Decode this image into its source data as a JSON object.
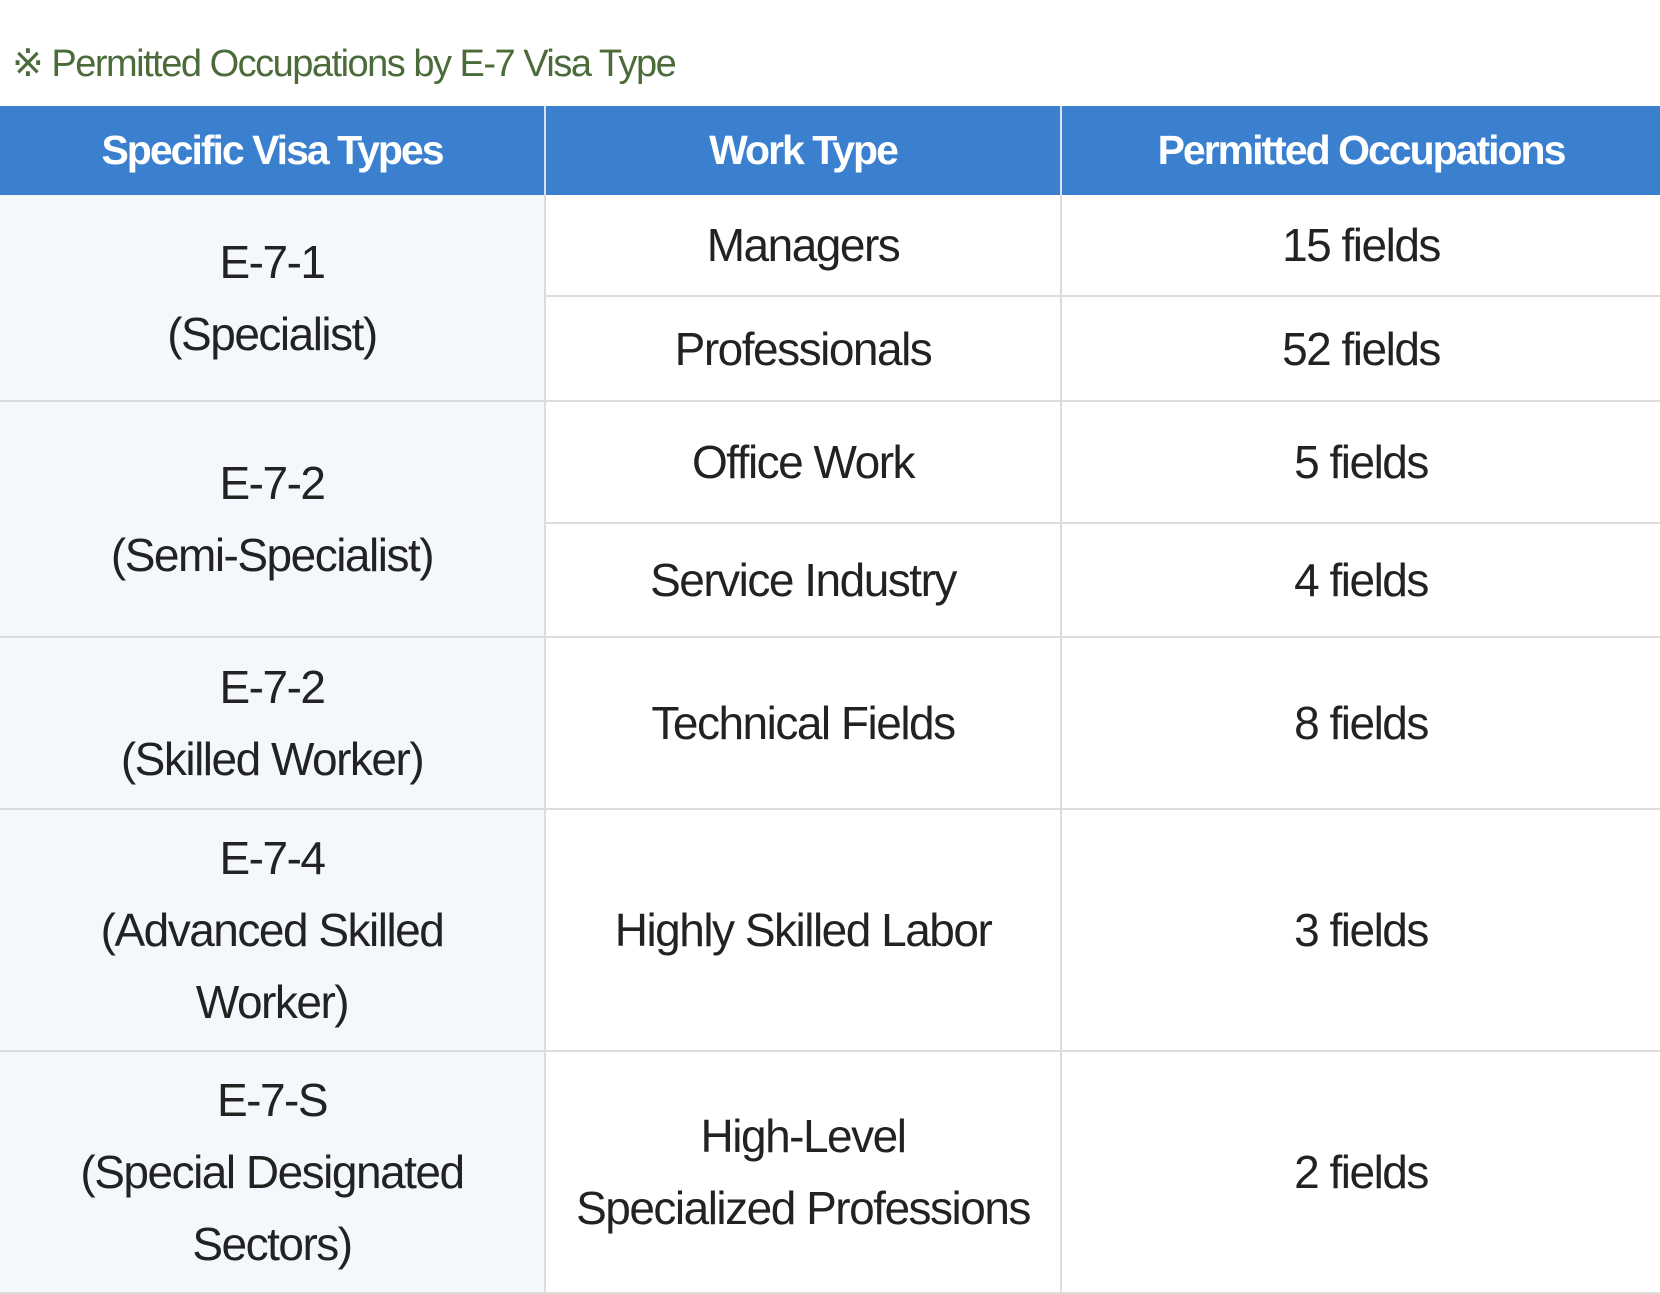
{
  "caption": "※ Permitted Occupations by E-7 Visa Type",
  "table": {
    "headers": [
      "Specific Visa Types",
      "Work Type",
      "Permitted Occupations"
    ],
    "groups": [
      {
        "code": "E-7-1",
        "name_lines": [
          "(Specialist)"
        ],
        "rows": [
          {
            "work_type_lines": [
              "Managers"
            ],
            "occupations": "15 fields"
          },
          {
            "work_type_lines": [
              "Professionals"
            ],
            "occupations": "52 fields"
          }
        ]
      },
      {
        "code": "E-7-2",
        "name_lines": [
          "(Semi-Specialist)"
        ],
        "rows": [
          {
            "work_type_lines": [
              "Office Work"
            ],
            "occupations": "5 fields"
          },
          {
            "work_type_lines": [
              "Service Industry"
            ],
            "occupations": "4 fields"
          }
        ]
      },
      {
        "code": "E-7-2",
        "name_lines": [
          "(Skilled Worker)"
        ],
        "rows": [
          {
            "work_type_lines": [
              "Technical Fields"
            ],
            "occupations": "8 fields"
          }
        ]
      },
      {
        "code": "E-7-4",
        "name_lines": [
          "(Advanced Skilled",
          "Worker)"
        ],
        "rows": [
          {
            "work_type_lines": [
              "Highly Skilled Labor"
            ],
            "occupations": "3 fields"
          }
        ]
      },
      {
        "code": "E-7-S",
        "name_lines": [
          "(Special Designated",
          "Sectors)"
        ],
        "rows": [
          {
            "work_type_lines": [
              "High-Level",
              "Specialized Professions"
            ],
            "occupations": "2 fields"
          }
        ]
      }
    ]
  }
}
